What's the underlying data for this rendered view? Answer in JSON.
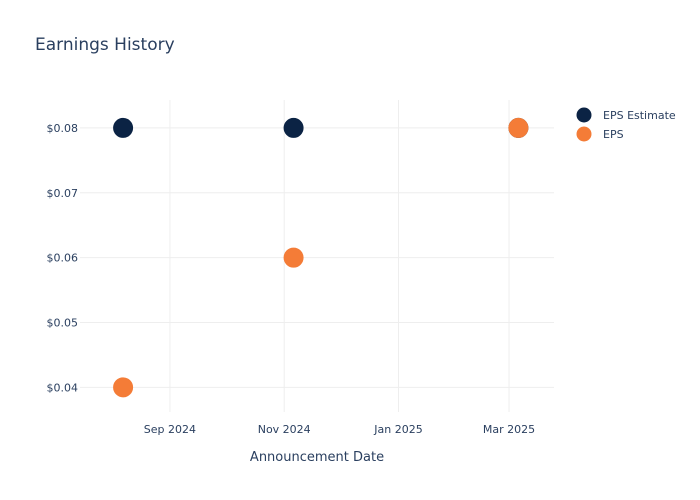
{
  "chart_data": {
    "type": "scatter",
    "title": "Earnings History",
    "xlabel": "Announcement Date",
    "ylabel": "",
    "x_ticks": [
      "Sep 2024",
      "Nov 2024",
      "Jan 2025",
      "Mar 2025"
    ],
    "y_ticks": [
      "$0.08",
      "$0.07",
      "$0.06",
      "$0.05",
      "$0.04"
    ],
    "y_tick_values": [
      0.08,
      0.07,
      0.06,
      0.05,
      0.04
    ],
    "x_tick_dates": [
      "2024-09-01",
      "2024-11-01",
      "2025-01-01",
      "2025-03-01"
    ],
    "xlim": [
      "2024-07-15",
      "2025-03-25"
    ],
    "ylim": [
      0.0362,
      0.0843
    ],
    "grid": true,
    "legend_position": "top-right",
    "series": [
      {
        "name": "EPS Estimate",
        "color": "#0b2344",
        "points": [
          {
            "x": "2024-08-07",
            "y": 0.08
          },
          {
            "x": "2024-11-06",
            "y": 0.08
          },
          {
            "x": "2025-03-06",
            "y": 0.08
          }
        ]
      },
      {
        "name": "EPS",
        "color": "#f47c37",
        "points": [
          {
            "x": "2024-08-07",
            "y": 0.04
          },
          {
            "x": "2024-11-06",
            "y": 0.06
          },
          {
            "x": "2025-03-06",
            "y": 0.08
          }
        ]
      }
    ]
  }
}
